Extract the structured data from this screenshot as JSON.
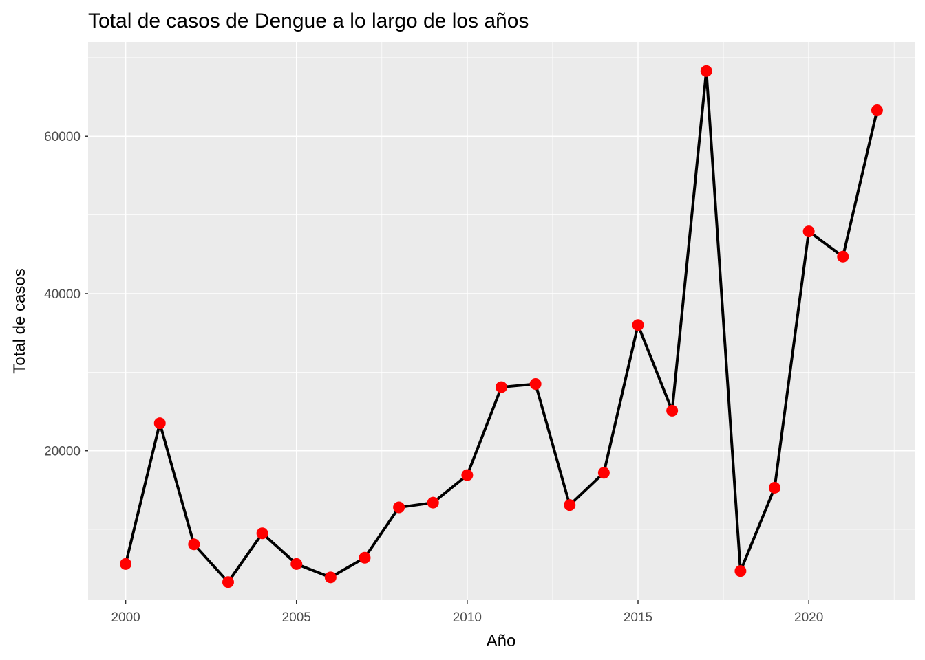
{
  "chart_data": {
    "type": "line",
    "title": "Total de casos de Dengue a lo largo de los años",
    "xlabel": "Año",
    "ylabel": "Total de casos",
    "x_ticks": [
      "2000",
      "2005",
      "2010",
      "2015",
      "2020"
    ],
    "y_ticks": [
      "20000",
      "40000",
      "60000"
    ],
    "xlim": [
      1998.9,
      2023.1
    ],
    "ylim": [
      1000,
      72000
    ],
    "grid": true,
    "legend": "none",
    "colors": {
      "panel": "#EBEBEB",
      "grid": "#FFFFFF",
      "line": "#000000",
      "points": "#FF0000"
    },
    "series": [
      {
        "x": [
          2000,
          2001,
          2002,
          2003,
          2004,
          2005,
          2006,
          2007,
          2008,
          2009,
          2010,
          2011,
          2012,
          2013,
          2014,
          2015,
          2016,
          2017,
          2018,
          2019,
          2020,
          2021,
          2022
        ],
        "values": [
          5600,
          23500,
          8100,
          3300,
          9500,
          5600,
          3900,
          6400,
          12800,
          13400,
          16900,
          28100,
          28500,
          13100,
          17200,
          36000,
          25100,
          68300,
          4700,
          15300,
          47900,
          44700,
          63300
        ]
      }
    ]
  }
}
